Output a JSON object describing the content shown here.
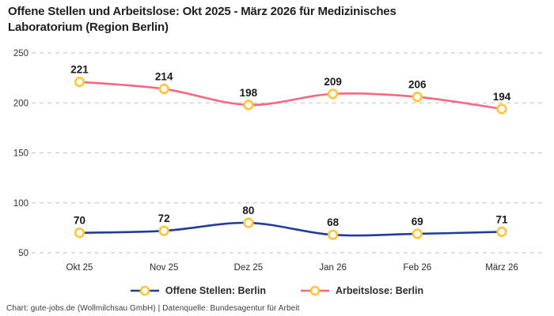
{
  "title": "Offene Stellen und Arbeitslose: Okt 2025 - März 2026 für Medizinisches Laboratorium (Region Berlin)",
  "footer": "Chart: gute-jobs.de (Wollmilchsau GmbH) | Datenquelle: Bundesagentur für Arbeit",
  "chart_data": {
    "type": "line",
    "categories": [
      "Okt 25",
      "Nov 25",
      "Dez 25",
      "Jan 26",
      "Feb 26",
      "März 26"
    ],
    "series": [
      {
        "name": "Offene Stellen: Berlin",
        "values": [
          70,
          72,
          80,
          68,
          69,
          71
        ],
        "color": "#213C9B"
      },
      {
        "name": "Arbeitslose: Berlin",
        "values": [
          221,
          214,
          198,
          209,
          206,
          194
        ],
        "color": "#F7687F"
      }
    ],
    "marker": {
      "fill": "#FFFFFF",
      "stroke": "#FFC53D"
    },
    "yticks": [
      50,
      100,
      150,
      200,
      250
    ],
    "ylim": [
      50,
      250
    ],
    "xlabel": "",
    "ylabel": "",
    "grid": "horizontal-dashed",
    "grid_color": "#CBCBCB",
    "tick_color": "#333333",
    "point_label_color": "#1A1A1A",
    "legend_position": "bottom"
  }
}
